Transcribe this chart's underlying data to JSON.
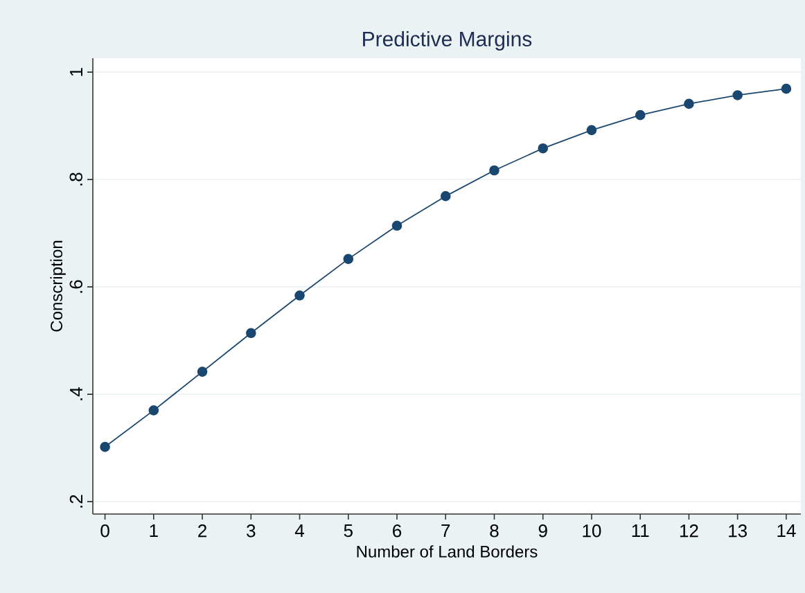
{
  "chart_data": {
    "type": "line",
    "title": "Predictive Margins",
    "xlabel": "Number of Land Borders",
    "ylabel": "Conscription",
    "x": [
      0,
      1,
      2,
      3,
      4,
      5,
      6,
      7,
      8,
      9,
      10,
      11,
      12,
      13,
      14
    ],
    "series": [
      {
        "color": "#1a476f",
        "values": [
          0.302,
          0.37,
          0.442,
          0.514,
          0.584,
          0.652,
          0.714,
          0.769,
          0.817,
          0.858,
          0.892,
          0.92,
          0.941,
          0.957,
          0.969
        ]
      }
    ],
    "xlim": [
      -0.25,
      14.3
    ],
    "ylim": [
      0.177,
      1.026
    ],
    "xticks": [
      0,
      1,
      2,
      3,
      4,
      5,
      6,
      7,
      8,
      9,
      10,
      11,
      12,
      13,
      14
    ],
    "yticks": [
      {
        "value": 0.2,
        "label": ".2"
      },
      {
        "value": 0.4,
        "label": ".4"
      },
      {
        "value": 0.6,
        "label": ".6"
      },
      {
        "value": 0.8,
        "label": ".8"
      },
      {
        "value": 1,
        "label": "1"
      }
    ],
    "grid": "y",
    "marker": "circle",
    "line_style": "solid"
  }
}
